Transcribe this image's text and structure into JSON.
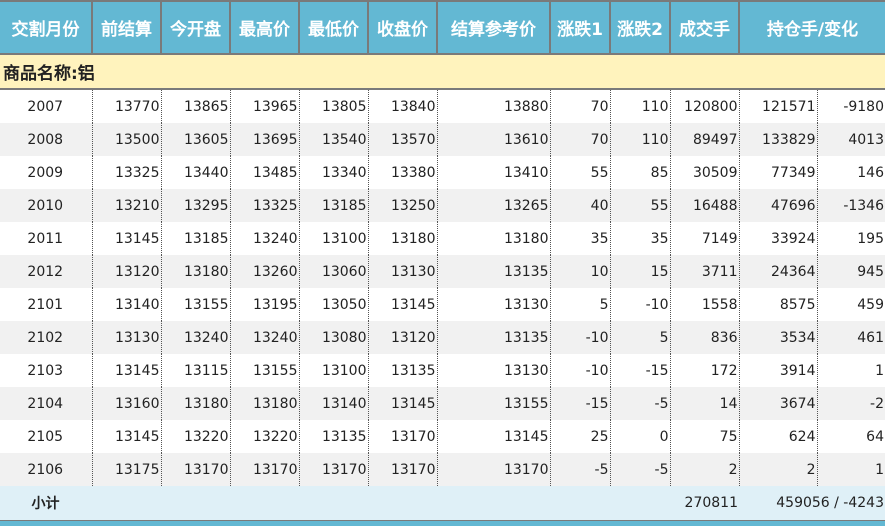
{
  "headers": [
    "交割月份",
    "前结算",
    "今开盘",
    "最高价",
    "最低价",
    "收盘价",
    "结算参考价",
    "涨跌1",
    "涨跌2",
    "成交手",
    "持仓手/变化"
  ],
  "product_label": "商品名称:铝",
  "rows": [
    [
      "2007",
      "13770",
      "13865",
      "13965",
      "13805",
      "13840",
      "13880",
      "70",
      "110",
      "120800",
      "121571",
      "-9180"
    ],
    [
      "2008",
      "13500",
      "13605",
      "13695",
      "13540",
      "13570",
      "13610",
      "70",
      "110",
      "89497",
      "133829",
      "4013"
    ],
    [
      "2009",
      "13325",
      "13440",
      "13485",
      "13340",
      "13380",
      "13410",
      "55",
      "85",
      "30509",
      "77349",
      "146"
    ],
    [
      "2010",
      "13210",
      "13295",
      "13325",
      "13185",
      "13250",
      "13265",
      "40",
      "55",
      "16488",
      "47696",
      "-1346"
    ],
    [
      "2011",
      "13145",
      "13185",
      "13240",
      "13100",
      "13180",
      "13180",
      "35",
      "35",
      "7149",
      "33924",
      "195"
    ],
    [
      "2012",
      "13120",
      "13180",
      "13260",
      "13060",
      "13130",
      "13135",
      "10",
      "15",
      "3711",
      "24364",
      "945"
    ],
    [
      "2101",
      "13140",
      "13155",
      "13195",
      "13050",
      "13145",
      "13130",
      "5",
      "-10",
      "1558",
      "8575",
      "459"
    ],
    [
      "2102",
      "13130",
      "13240",
      "13240",
      "13080",
      "13120",
      "13135",
      "-10",
      "5",
      "836",
      "3534",
      "461"
    ],
    [
      "2103",
      "13145",
      "13115",
      "13155",
      "13100",
      "13135",
      "13130",
      "-10",
      "-15",
      "172",
      "3914",
      "1"
    ],
    [
      "2104",
      "13160",
      "13180",
      "13180",
      "13140",
      "13145",
      "13155",
      "-15",
      "-5",
      "14",
      "3674",
      "-2"
    ],
    [
      "2105",
      "13145",
      "13220",
      "13220",
      "13135",
      "13170",
      "13145",
      "25",
      "0",
      "75",
      "624",
      "64"
    ],
    [
      "2106",
      "13175",
      "13170",
      "13170",
      "13170",
      "13170",
      "13170",
      "-5",
      "-5",
      "2",
      "2",
      "1"
    ]
  ],
  "footer": {
    "label": "小计",
    "volume": "270811",
    "open_interest": "459056 / -4243"
  },
  "colors": {
    "header_bg": "#63b8d3",
    "product_bg": "#fff3bd",
    "footer_bg": "#dff0f7"
  }
}
